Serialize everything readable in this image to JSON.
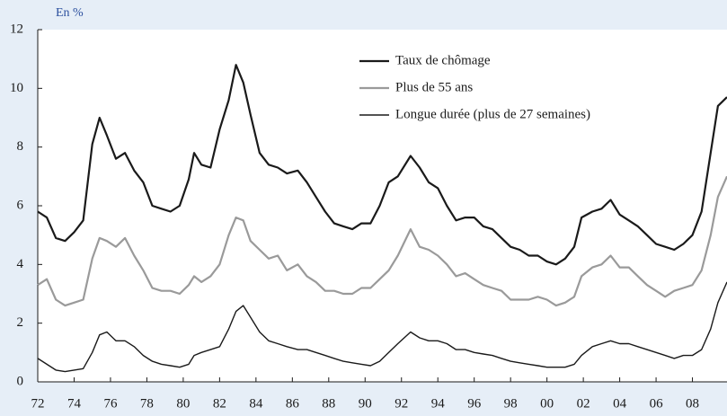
{
  "chart_data": {
    "type": "line",
    "subtitle": "En %",
    "x": [
      1972.0,
      1972.5,
      1973.0,
      1973.5,
      1974.0,
      1974.5,
      1975.0,
      1975.4,
      1975.8,
      1976.3,
      1976.8,
      1977.3,
      1977.8,
      1978.3,
      1978.8,
      1979.3,
      1979.8,
      1980.3,
      1980.6,
      1981.0,
      1981.5,
      1982.0,
      1982.5,
      1982.9,
      1983.3,
      1983.7,
      1984.2,
      1984.7,
      1985.2,
      1985.7,
      1986.3,
      1986.8,
      1987.3,
      1987.8,
      1988.3,
      1988.8,
      1989.3,
      1989.8,
      1990.3,
      1990.8,
      1991.3,
      1991.8,
      1992.5,
      1993.0,
      1993.5,
      1994.0,
      1994.5,
      1995.0,
      1995.5,
      1996.0,
      1996.5,
      1997.0,
      1997.5,
      1998.0,
      1998.5,
      1999.0,
      1999.5,
      2000.0,
      2000.5,
      2001.0,
      2001.5,
      2001.9,
      2002.5,
      2003.0,
      2003.5,
      2004.0,
      2004.5,
      2005.0,
      2005.5,
      2006.0,
      2006.5,
      2007.0,
      2007.5,
      2008.0,
      2008.5,
      2009.0,
      2009.4,
      2009.9
    ],
    "series": [
      {
        "name": "Taux de chômage",
        "color": "#1a1a1a",
        "width": 2.2,
        "values": [
          5.8,
          5.6,
          4.9,
          4.8,
          5.1,
          5.5,
          8.1,
          9.0,
          8.4,
          7.6,
          7.8,
          7.2,
          6.8,
          6.0,
          5.9,
          5.8,
          6.0,
          6.9,
          7.8,
          7.4,
          7.3,
          8.6,
          9.6,
          10.8,
          10.2,
          9.1,
          7.8,
          7.4,
          7.3,
          7.1,
          7.2,
          6.8,
          6.3,
          5.8,
          5.4,
          5.3,
          5.2,
          5.4,
          5.4,
          6.0,
          6.8,
          7.0,
          7.7,
          7.3,
          6.8,
          6.6,
          6.0,
          5.5,
          5.6,
          5.6,
          5.3,
          5.2,
          4.9,
          4.6,
          4.5,
          4.3,
          4.3,
          4.1,
          4.0,
          4.2,
          4.6,
          5.6,
          5.8,
          5.9,
          6.2,
          5.7,
          5.5,
          5.3,
          5.0,
          4.7,
          4.6,
          4.5,
          4.7,
          5.0,
          5.8,
          7.8,
          9.4,
          9.7
        ]
      },
      {
        "name": "Plus de 55 ans",
        "color": "#9a9a9a",
        "width": 2.2,
        "values": [
          3.3,
          3.5,
          2.8,
          2.6,
          2.7,
          2.8,
          4.2,
          4.9,
          4.8,
          4.6,
          4.9,
          4.3,
          3.8,
          3.2,
          3.1,
          3.1,
          3.0,
          3.3,
          3.6,
          3.4,
          3.6,
          4.0,
          5.0,
          5.6,
          5.5,
          4.8,
          4.5,
          4.2,
          4.3,
          3.8,
          4.0,
          3.6,
          3.4,
          3.1,
          3.1,
          3.0,
          3.0,
          3.2,
          3.2,
          3.5,
          3.8,
          4.3,
          5.2,
          4.6,
          4.5,
          4.3,
          4.0,
          3.6,
          3.7,
          3.5,
          3.3,
          3.2,
          3.1,
          2.8,
          2.8,
          2.8,
          2.9,
          2.8,
          2.6,
          2.7,
          2.9,
          3.6,
          3.9,
          4.0,
          4.3,
          3.9,
          3.9,
          3.6,
          3.3,
          3.1,
          2.9,
          3.1,
          3.2,
          3.3,
          3.8,
          5.0,
          6.3,
          7.0
        ]
      },
      {
        "name": "Longue durée (plus de 27 semaines)",
        "color": "#1a1a1a",
        "width": 1.4,
        "values": [
          0.8,
          0.6,
          0.4,
          0.35,
          0.4,
          0.45,
          1.0,
          1.6,
          1.7,
          1.4,
          1.4,
          1.2,
          0.9,
          0.7,
          0.6,
          0.55,
          0.5,
          0.6,
          0.9,
          1.0,
          1.1,
          1.2,
          1.8,
          2.4,
          2.6,
          2.2,
          1.7,
          1.4,
          1.3,
          1.2,
          1.1,
          1.1,
          1.0,
          0.9,
          0.8,
          0.7,
          0.65,
          0.6,
          0.55,
          0.7,
          1.0,
          1.3,
          1.7,
          1.5,
          1.4,
          1.4,
          1.3,
          1.1,
          1.1,
          1.0,
          0.95,
          0.9,
          0.8,
          0.7,
          0.65,
          0.6,
          0.55,
          0.5,
          0.5,
          0.5,
          0.6,
          0.9,
          1.2,
          1.3,
          1.4,
          1.3,
          1.3,
          1.2,
          1.1,
          1.0,
          0.9,
          0.8,
          0.9,
          0.9,
          1.1,
          1.8,
          2.7,
          3.4
        ]
      }
    ],
    "xlim": [
      1972,
      2009.9
    ],
    "xticks": [
      {
        "value": 1972,
        "label": "72"
      },
      {
        "value": 1974,
        "label": "74"
      },
      {
        "value": 1976,
        "label": "76"
      },
      {
        "value": 1978,
        "label": "78"
      },
      {
        "value": 1980,
        "label": "80"
      },
      {
        "value": 1982,
        "label": "82"
      },
      {
        "value": 1984,
        "label": "84"
      },
      {
        "value": 1986,
        "label": "86"
      },
      {
        "value": 1988,
        "label": "88"
      },
      {
        "value": 1990,
        "label": "90"
      },
      {
        "value": 1992,
        "label": "92"
      },
      {
        "value": 1994,
        "label": "94"
      },
      {
        "value": 1996,
        "label": "96"
      },
      {
        "value": 1998,
        "label": "98"
      },
      {
        "value": 2000,
        "label": "00"
      },
      {
        "value": 2002,
        "label": "02"
      },
      {
        "value": 2004,
        "label": "04"
      },
      {
        "value": 2006,
        "label": "06"
      },
      {
        "value": 2008,
        "label": "08"
      }
    ],
    "ylim": [
      0,
      12
    ],
    "yticks": [
      0,
      2,
      4,
      6,
      8,
      10,
      12
    ]
  }
}
